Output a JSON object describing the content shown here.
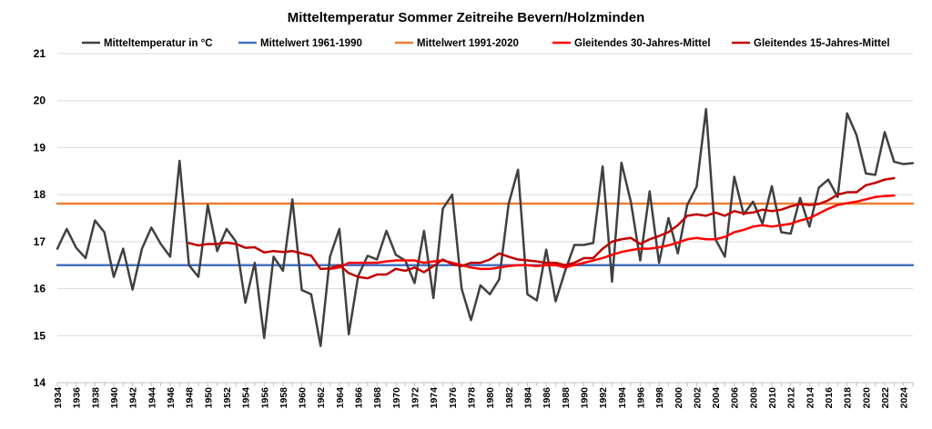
{
  "chart_data": {
    "type": "line",
    "title": "Mitteltemperatur Sommer Zeitreihe Bevern/Holzminden",
    "ylim": [
      14,
      21
    ],
    "yticks": [
      14,
      15,
      16,
      17,
      18,
      19,
      20,
      21
    ],
    "xlim": [
      1934,
      2025
    ],
    "xticks": [
      1934,
      1936,
      1938,
      1940,
      1942,
      1944,
      1946,
      1948,
      1950,
      1952,
      1954,
      1956,
      1958,
      1960,
      1962,
      1964,
      1966,
      1968,
      1970,
      1972,
      1974,
      1976,
      1978,
      1980,
      1982,
      1984,
      1986,
      1988,
      1990,
      1992,
      1994,
      1996,
      1998,
      2000,
      2002,
      2004,
      2006,
      2008,
      2010,
      2012,
      2014,
      2016,
      2018,
      2020,
      2022,
      2024
    ],
    "grid": "horizontal",
    "legend_position": "top",
    "series": [
      {
        "name": "Mitteltemperatur in °C",
        "color": "#404040",
        "x_start": 1934,
        "values": [
          16.85,
          17.27,
          16.87,
          16.65,
          17.45,
          17.2,
          16.25,
          16.85,
          15.98,
          16.85,
          17.3,
          16.95,
          16.68,
          18.72,
          16.5,
          16.25,
          17.78,
          16.8,
          17.27,
          17.0,
          15.7,
          16.55,
          14.95,
          16.68,
          16.38,
          17.9,
          15.97,
          15.88,
          14.78,
          16.68,
          17.27,
          15.03,
          16.27,
          16.7,
          16.62,
          17.23,
          16.72,
          16.6,
          16.12,
          17.23,
          15.8,
          17.7,
          18.0,
          16.0,
          15.33,
          16.07,
          15.88,
          16.2,
          17.8,
          18.53,
          15.88,
          15.75,
          16.83,
          15.73,
          16.37,
          16.93,
          16.93,
          16.97,
          18.6,
          16.15,
          18.68,
          17.85,
          16.6,
          18.07,
          16.55,
          17.5,
          16.75,
          17.78,
          18.17,
          19.82,
          17.05,
          16.68,
          18.38,
          17.58,
          17.85,
          17.38,
          18.18,
          17.2,
          17.17,
          17.93,
          17.32,
          18.15,
          18.32,
          17.95,
          19.73,
          19.27,
          18.45,
          18.42,
          19.33,
          18.7,
          18.65,
          18.67
        ]
      },
      {
        "name": "Mittelwert 1961-1990",
        "color": "#4472c4",
        "x_start": 1934,
        "x_end": 2025,
        "value": 16.5
      },
      {
        "name": "Mittelwert 1991-2020",
        "color": "#ed7d31",
        "x_start": 1934,
        "x_end": 2025,
        "value": 17.81
      },
      {
        "name": "Gleitendes 30-Jahres-Mittel",
        "color": "#ff0000",
        "x_start": 1963,
        "values": [
          16.42,
          16.45,
          16.55,
          16.55,
          16.55,
          16.55,
          16.58,
          16.6,
          16.6,
          16.6,
          16.55,
          16.58,
          16.6,
          16.55,
          16.5,
          16.45,
          16.42,
          16.42,
          16.45,
          16.48,
          16.5,
          16.5,
          16.48,
          16.5,
          16.5,
          16.45,
          16.5,
          16.55,
          16.6,
          16.65,
          16.72,
          16.78,
          16.82,
          16.85,
          16.85,
          16.88,
          16.92,
          16.98,
          17.05,
          17.08,
          17.05,
          17.05,
          17.1,
          17.2,
          17.25,
          17.32,
          17.35,
          17.32,
          17.35,
          17.38,
          17.45,
          17.5,
          17.6,
          17.7,
          17.78,
          17.82,
          17.85,
          17.9,
          17.95,
          17.97,
          17.98
        ]
      },
      {
        "name": "Gleitendes 15-Jahres-Mittel",
        "color": "#c00000",
        "x_start": 1948,
        "values": [
          16.97,
          16.92,
          16.95,
          16.95,
          16.98,
          16.95,
          16.87,
          16.88,
          16.77,
          16.8,
          16.78,
          16.8,
          16.75,
          16.7,
          16.42,
          16.43,
          16.5,
          16.33,
          16.25,
          16.22,
          16.3,
          16.3,
          16.42,
          16.38,
          16.45,
          16.35,
          16.48,
          16.62,
          16.52,
          16.48,
          16.55,
          16.55,
          16.62,
          16.75,
          16.68,
          16.62,
          16.6,
          16.58,
          16.55,
          16.55,
          16.5,
          16.55,
          16.65,
          16.65,
          16.85,
          17.0,
          17.05,
          17.08,
          16.95,
          17.05,
          17.12,
          17.2,
          17.35,
          17.55,
          17.58,
          17.55,
          17.62,
          17.55,
          17.65,
          17.6,
          17.62,
          17.68,
          17.65,
          17.68,
          17.75,
          17.8,
          17.78,
          17.8,
          17.88,
          18.0,
          18.05,
          18.05,
          18.2,
          18.25,
          18.32,
          18.35
        ]
      }
    ]
  }
}
